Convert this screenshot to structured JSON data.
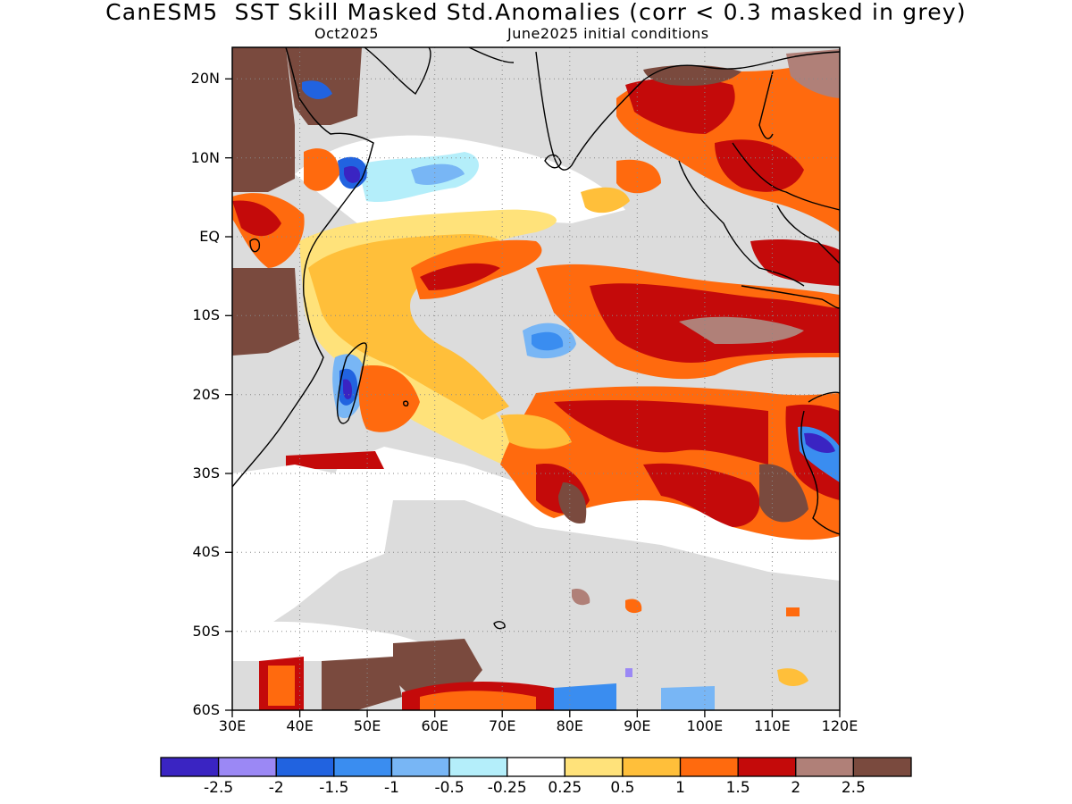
{
  "title": "CanESM5  SST Skill Masked Std.Anomalies (corr < 0.3 masked in grey)",
  "subtitle_left": "Oct2025",
  "subtitle_right": "June2025 initial conditions",
  "map": {
    "lon_range": [
      30,
      120
    ],
    "lat_range": [
      -60,
      24
    ],
    "lon_ticks": [
      "30E",
      "40E",
      "50E",
      "60E",
      "70E",
      "80E",
      "90E",
      "100E",
      "110E",
      "120E"
    ],
    "lat_ticks": [
      "20N",
      "10N",
      "EQ",
      "10S",
      "20S",
      "30S",
      "40S",
      "50S",
      "60S"
    ],
    "mask_color": "#dcdcdc",
    "grid": "dotted"
  },
  "colorbar": {
    "colors": [
      "#3a24c2",
      "#9b88f5",
      "#2163e0",
      "#3a8df0",
      "#78b6f5",
      "#b4eefa",
      "#ffffff",
      "#ffe27a",
      "#ffbf3a",
      "#ff6a0e",
      "#c40a0a",
      "#b08078",
      "#7a4a3e"
    ],
    "labels": [
      "-2.5",
      "-2",
      "-1.5",
      "-1",
      "-0.5",
      "-0.25",
      "0.25",
      "0.5",
      "1",
      "1.5",
      "2",
      "2.5"
    ]
  }
}
